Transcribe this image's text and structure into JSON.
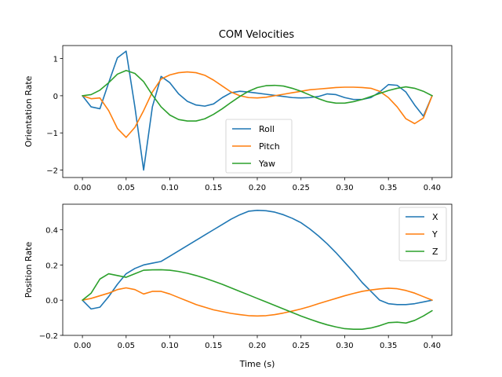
{
  "figure": {
    "title": "COM Velocities",
    "background": "#ffffff"
  },
  "chart_data": [
    {
      "type": "line",
      "title": "COM Velocities",
      "xlabel": "",
      "ylabel": "Orientation Rate",
      "xlim": [
        -0.0225,
        0.4225
      ],
      "ylim": [
        -2.2,
        1.35
      ],
      "xticks": [
        0.0,
        0.05,
        0.1,
        0.15,
        0.2,
        0.25,
        0.3,
        0.35,
        0.4
      ],
      "xtick_labels": [
        "0.00",
        "0.05",
        "0.10",
        "0.15",
        "0.20",
        "0.25",
        "0.30",
        "0.35",
        "0.40"
      ],
      "yticks": [
        -2,
        -1,
        0,
        1
      ],
      "ytick_labels": [
        "−2",
        "−1",
        "0",
        "1"
      ],
      "legend_position": "lower-center",
      "grid": false,
      "x": [
        0.0,
        0.01,
        0.02,
        0.03,
        0.04,
        0.05,
        0.06,
        0.07,
        0.08,
        0.09,
        0.1,
        0.11,
        0.12,
        0.13,
        0.14,
        0.15,
        0.16,
        0.17,
        0.18,
        0.19,
        0.2,
        0.21,
        0.22,
        0.23,
        0.24,
        0.25,
        0.26,
        0.27,
        0.28,
        0.29,
        0.3,
        0.31,
        0.32,
        0.33,
        0.34,
        0.35,
        0.36,
        0.37,
        0.38,
        0.39,
        0.4
      ],
      "series": [
        {
          "name": "Roll",
          "color": "#1f77b4",
          "values": [
            0.0,
            -0.3,
            -0.35,
            0.35,
            1.02,
            1.2,
            -0.3,
            -2.0,
            -0.3,
            0.52,
            0.35,
            0.05,
            -0.15,
            -0.25,
            -0.28,
            -0.22,
            -0.05,
            0.08,
            0.12,
            0.1,
            0.07,
            0.04,
            0.01,
            -0.02,
            -0.05,
            -0.06,
            -0.05,
            -0.02,
            0.05,
            0.03,
            -0.05,
            -0.1,
            -0.1,
            -0.05,
            0.1,
            0.3,
            0.28,
            0.1,
            -0.25,
            -0.55,
            0.0
          ]
        },
        {
          "name": "Pitch",
          "color": "#ff7f0e",
          "values": [
            0.0,
            -0.08,
            -0.06,
            -0.4,
            -0.88,
            -1.12,
            -0.85,
            -0.4,
            0.1,
            0.45,
            0.56,
            0.62,
            0.64,
            0.62,
            0.55,
            0.42,
            0.26,
            0.1,
            0.0,
            -0.05,
            -0.06,
            -0.04,
            0.0,
            0.04,
            0.08,
            0.12,
            0.16,
            0.18,
            0.2,
            0.22,
            0.23,
            0.23,
            0.22,
            0.2,
            0.12,
            -0.05,
            -0.3,
            -0.62,
            -0.75,
            -0.6,
            0.0
          ]
        },
        {
          "name": "Yaw",
          "color": "#2ca02c",
          "values": [
            0.0,
            0.03,
            0.15,
            0.35,
            0.58,
            0.68,
            0.6,
            0.38,
            0.02,
            -0.3,
            -0.52,
            -0.64,
            -0.68,
            -0.68,
            -0.62,
            -0.5,
            -0.35,
            -0.18,
            -0.02,
            0.12,
            0.22,
            0.27,
            0.28,
            0.26,
            0.2,
            0.12,
            0.02,
            -0.08,
            -0.16,
            -0.2,
            -0.2,
            -0.16,
            -0.1,
            -0.02,
            0.06,
            0.14,
            0.2,
            0.24,
            0.2,
            0.12,
            0.0
          ]
        }
      ]
    },
    {
      "type": "line",
      "title": "",
      "xlabel": "Time (s)",
      "ylabel": "Position Rate",
      "xlim": [
        -0.0225,
        0.4225
      ],
      "ylim": [
        -0.2,
        0.545
      ],
      "xticks": [
        0.0,
        0.05,
        0.1,
        0.15,
        0.2,
        0.25,
        0.3,
        0.35,
        0.4
      ],
      "xtick_labels": [
        "0.00",
        "0.05",
        "0.10",
        "0.15",
        "0.20",
        "0.25",
        "0.30",
        "0.35",
        "0.40"
      ],
      "yticks": [
        -0.2,
        0.0,
        0.2,
        0.4
      ],
      "ytick_labels": [
        "−0.2",
        "0.0",
        "0.2",
        "0.4"
      ],
      "legend_position": "upper-right",
      "grid": false,
      "x": [
        0.0,
        0.01,
        0.02,
        0.03,
        0.04,
        0.05,
        0.06,
        0.07,
        0.08,
        0.09,
        0.1,
        0.11,
        0.12,
        0.13,
        0.14,
        0.15,
        0.16,
        0.17,
        0.18,
        0.19,
        0.2,
        0.21,
        0.22,
        0.23,
        0.24,
        0.25,
        0.26,
        0.27,
        0.28,
        0.29,
        0.3,
        0.31,
        0.32,
        0.33,
        0.34,
        0.35,
        0.36,
        0.37,
        0.38,
        0.39,
        0.4
      ],
      "series": [
        {
          "name": "X",
          "color": "#1f77b4",
          "values": [
            0.0,
            -0.05,
            -0.04,
            0.02,
            0.09,
            0.15,
            0.18,
            0.2,
            0.21,
            0.22,
            0.25,
            0.28,
            0.31,
            0.34,
            0.37,
            0.4,
            0.43,
            0.46,
            0.485,
            0.505,
            0.51,
            0.508,
            0.5,
            0.485,
            0.465,
            0.44,
            0.405,
            0.365,
            0.32,
            0.27,
            0.215,
            0.16,
            0.1,
            0.05,
            0.0,
            -0.02,
            -0.025,
            -0.025,
            -0.02,
            -0.01,
            0.0
          ]
        },
        {
          "name": "Y",
          "color": "#ff7f0e",
          "values": [
            0.0,
            0.01,
            0.025,
            0.04,
            0.06,
            0.07,
            0.06,
            0.035,
            0.05,
            0.05,
            0.035,
            0.015,
            -0.005,
            -0.025,
            -0.04,
            -0.055,
            -0.065,
            -0.075,
            -0.082,
            -0.088,
            -0.09,
            -0.088,
            -0.082,
            -0.073,
            -0.062,
            -0.05,
            -0.036,
            -0.02,
            -0.005,
            0.01,
            0.025,
            0.038,
            0.05,
            0.058,
            0.064,
            0.068,
            0.065,
            0.055,
            0.04,
            0.02,
            0.0
          ]
        },
        {
          "name": "Z",
          "color": "#2ca02c",
          "values": [
            0.0,
            0.04,
            0.12,
            0.15,
            0.14,
            0.13,
            0.15,
            0.17,
            0.172,
            0.173,
            0.17,
            0.163,
            0.153,
            0.14,
            0.125,
            0.108,
            0.09,
            0.07,
            0.05,
            0.03,
            0.01,
            -0.01,
            -0.03,
            -0.05,
            -0.07,
            -0.09,
            -0.108,
            -0.125,
            -0.14,
            -0.152,
            -0.162,
            -0.165,
            -0.165,
            -0.158,
            -0.145,
            -0.128,
            -0.125,
            -0.13,
            -0.115,
            -0.09,
            -0.06
          ]
        }
      ]
    }
  ]
}
